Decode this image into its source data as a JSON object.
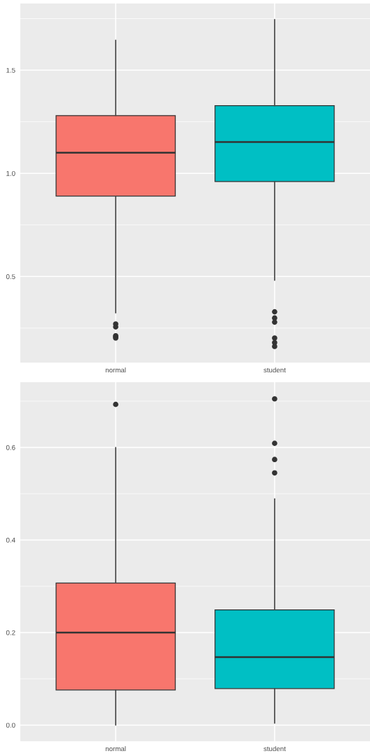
{
  "chart_data": [
    {
      "type": "box",
      "categories": [
        "normal",
        "student"
      ],
      "colors": [
        "#f8766d",
        "#00bfc4"
      ],
      "boxes": [
        {
          "low": 0.324,
          "q1": 0.89,
          "median": 1.1,
          "q3": 1.28,
          "high": 1.645,
          "outliers": [
            0.27,
            0.256,
            0.213,
            0.208,
            0.202
          ]
        },
        {
          "low": 0.482,
          "q1": 0.96,
          "median": 1.152,
          "q3": 1.328,
          "high": 1.745,
          "outliers": [
            0.329,
            0.299,
            0.279,
            0.202,
            0.18,
            0.161
          ]
        }
      ],
      "ylim": [
        0.083,
        1.823
      ],
      "yticks": [
        0.5,
        {
          "value": 1.0,
          "label": "1.0"
        },
        1.5
      ],
      "grid": true
    },
    {
      "type": "box",
      "categories": [
        "normal",
        "student"
      ],
      "colors": [
        "#f8766d",
        "#00bfc4"
      ],
      "boxes": [
        {
          "low": 0.0,
          "q1": 0.076,
          "median": 0.2,
          "q3": 0.307,
          "high": 0.6,
          "outliers": [
            0.693
          ]
        },
        {
          "low": 0.004,
          "q1": 0.079,
          "median": 0.147,
          "q3": 0.249,
          "high": 0.489,
          "outliers": [
            0.705,
            0.609,
            0.574,
            0.545
          ]
        }
      ],
      "ylim": [
        -0.035,
        0.741
      ],
      "yticks": [
        {
          "value": 0.0,
          "label": "0.0"
        },
        0.2,
        0.4,
        0.6
      ],
      "grid": true
    }
  ]
}
